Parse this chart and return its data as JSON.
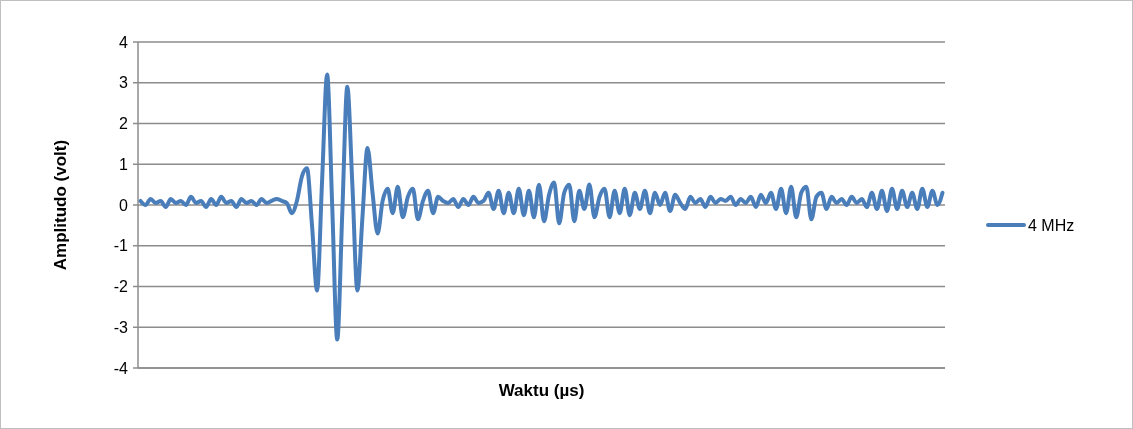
{
  "chart_data": {
    "type": "line",
    "xlabel": "Waktu (µs)",
    "ylabel": "Amplitudo (volt)",
    "categories": [
      null,
      null,
      null,
      null,
      null,
      null,
      null,
      null,
      null,
      null,
      null,
      null,
      null,
      null,
      null,
      null,
      null,
      null,
      null,
      null,
      null,
      null,
      null,
      null,
      null,
      null,
      null,
      null,
      null,
      null,
      null,
      null,
      null,
      null,
      null,
      null,
      null,
      null,
      null,
      null,
      null,
      null,
      null,
      null,
      null,
      null,
      null,
      null,
      null,
      null,
      null,
      null,
      null,
      null,
      null,
      null,
      null,
      null,
      null,
      null,
      null,
      null,
      null,
      null,
      null,
      null,
      null,
      null,
      null,
      null,
      null,
      null,
      null,
      null,
      null,
      null,
      null,
      null,
      null,
      null,
      null,
      null,
      null,
      null,
      null,
      null,
      null,
      null,
      null,
      null,
      null,
      null,
      null,
      null,
      null,
      null,
      null,
      null,
      null,
      null,
      null,
      null,
      null,
      null,
      null,
      null,
      null,
      null,
      null,
      null,
      null,
      null,
      null,
      null,
      null,
      null,
      null,
      null,
      null,
      null,
      null,
      null,
      null,
      null,
      null,
      null,
      null,
      null,
      null,
      null,
      null,
      null,
      null,
      null,
      null,
      null,
      null,
      null,
      null,
      null,
      null,
      null,
      null,
      null,
      null,
      null,
      null,
      null,
      null,
      null,
      null,
      null,
      null,
      null,
      null,
      null,
      null,
      null,
      null,
      null
    ],
    "series": [
      {
        "name": "4 MHz",
        "color": "#4a7ebb",
        "values": [
          0.1,
          0,
          0.15,
          0.05,
          0.1,
          -0.05,
          0.15,
          0.05,
          0.1,
          0,
          0.2,
          0.05,
          0.1,
          -0.05,
          0.15,
          0,
          0.2,
          0.05,
          0.1,
          -0.05,
          0.15,
          0.05,
          0.1,
          0,
          0.15,
          0.05,
          0.1,
          0.15,
          0.1,
          0.05,
          -0.2,
          0.1,
          0.7,
          0.9,
          -0.5,
          -2.1,
          0.6,
          3.2,
          0,
          -3.3,
          -0.2,
          2.9,
          0.5,
          -2.1,
          -0.3,
          1.4,
          0.3,
          -0.7,
          0.1,
          0.4,
          -0.2,
          0.45,
          -0.3,
          0.2,
          0.4,
          -0.35,
          0.1,
          0.35,
          -0.2,
          0.2,
          0.1,
          0.05,
          0.15,
          -0.05,
          0.15,
          0,
          0.2,
          0.05,
          0.1,
          0.3,
          -0.1,
          0.35,
          -0.2,
          0.3,
          -0.2,
          0.4,
          -0.25,
          0.35,
          -0.3,
          0.5,
          -0.4,
          0.25,
          0.55,
          -0.45,
          0.3,
          0.5,
          -0.4,
          0.35,
          -0.1,
          0.5,
          -0.3,
          0.2,
          0.4,
          -0.3,
          0.35,
          -0.2,
          0.4,
          -0.25,
          0.3,
          -0.1,
          0.35,
          -0.2,
          0.3,
          0,
          0.3,
          -0.15,
          0.25,
          0.05,
          -0.1,
          0.2,
          0.05,
          0.15,
          -0.05,
          0.2,
          0.05,
          0.15,
          0.1,
          0.2,
          0,
          0.15,
          0.05,
          0.2,
          -0.05,
          0.25,
          0.05,
          0.3,
          -0.1,
          0.4,
          -0.2,
          0.45,
          -0.3,
          0.3,
          0.45,
          -0.35,
          0.2,
          0.3,
          -0.1,
          0.2,
          0.05,
          0.15,
          0,
          0.2,
          0.05,
          0.15,
          -0.05,
          0.3,
          -0.1,
          0.35,
          -0.15,
          0.4,
          -0.1,
          0.35,
          -0.05,
          0.3,
          -0.1,
          0.4,
          -0.05,
          0.35,
          0,
          0.3
        ]
      }
    ],
    "ylim": [
      -4,
      4
    ],
    "yticks": [
      -4,
      -3,
      -2,
      -1,
      0,
      1,
      2,
      3,
      4
    ],
    "grid": "y",
    "legend": "right",
    "marker": "none",
    "line_style": "solid"
  }
}
